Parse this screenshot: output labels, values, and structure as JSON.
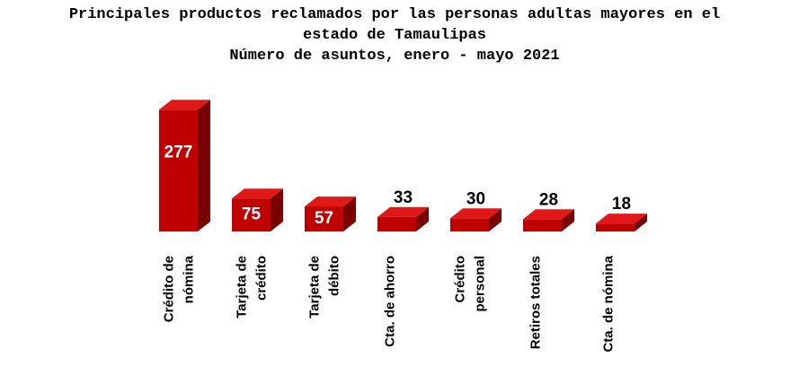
{
  "chart_data": {
    "type": "bar3d",
    "title": "Principales productos reclamados por las personas adultas mayores en el estado de Tamaulipas",
    "subtitle": "Número de asuntos, enero - mayo 2021",
    "categories": [
      "Crédito de\nnómina",
      "Tarjeta de\ncrédito",
      "Tarjeta de\ndébito",
      "Cta. de ahorro",
      "Crédito\npersonal",
      "Retiros totales",
      "Cta. de nómina"
    ],
    "values": [
      277,
      75,
      57,
      33,
      30,
      28,
      18
    ],
    "color": "#c00000"
  }
}
